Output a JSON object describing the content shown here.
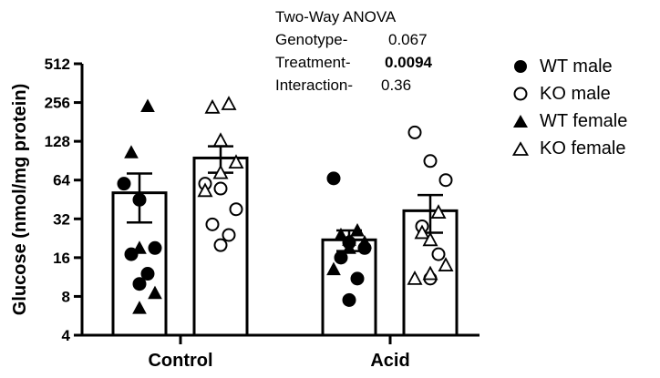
{
  "chart_data": {
    "type": "bar",
    "ylabel": "Glucose (nmol/mg protein)",
    "yscale": "log2",
    "ylim": [
      4,
      512
    ],
    "yticks": [
      "4",
      "8",
      "16",
      "32",
      "64",
      "128",
      "256",
      "512"
    ],
    "categories": [
      "Control",
      "Acid"
    ],
    "series": [
      {
        "name": "WT",
        "means": [
          51,
          22
        ],
        "sem": [
          21,
          4
        ]
      },
      {
        "name": "KO",
        "means": [
          95,
          37
        ],
        "sem": [
          22,
          12
        ]
      }
    ],
    "points": {
      "Control": {
        "WT": {
          "male": [
            60,
            45,
            19,
            17,
            12,
            10
          ],
          "female": [
            240,
            105,
            19,
            8.5,
            6.5
          ]
        },
        "KO": {
          "male": [
            60,
            55,
            38,
            29,
            24,
            20
          ],
          "female": [
            250,
            235,
            130,
            88,
            73,
            53
          ]
        }
      },
      "Acid": {
        "WT": {
          "male": [
            66,
            21,
            19,
            16,
            11,
            7.5
          ],
          "female": [
            26,
            24,
            22,
            21,
            19,
            13
          ]
        },
        "KO": {
          "male": [
            150,
            90,
            64,
            28,
            17,
            11
          ],
          "female": [
            36,
            25,
            22,
            14,
            12,
            11
          ]
        }
      }
    },
    "annotation": {
      "title": "Two-Way ANOVA",
      "rows": [
        {
          "label": "Genotype-",
          "value": "0.067",
          "bold": false
        },
        {
          "label": "Treatment-",
          "value": "0.0094",
          "bold": true
        },
        {
          "label": "Interaction-",
          "value": "0.36",
          "bold": false
        }
      ]
    },
    "legend": [
      {
        "label": "WT male",
        "marker": "filled-circle"
      },
      {
        "label": "KO male",
        "marker": "open-circle"
      },
      {
        "label": "WT female",
        "marker": "filled-triangle"
      },
      {
        "label": "KO female",
        "marker": "open-triangle"
      }
    ]
  }
}
